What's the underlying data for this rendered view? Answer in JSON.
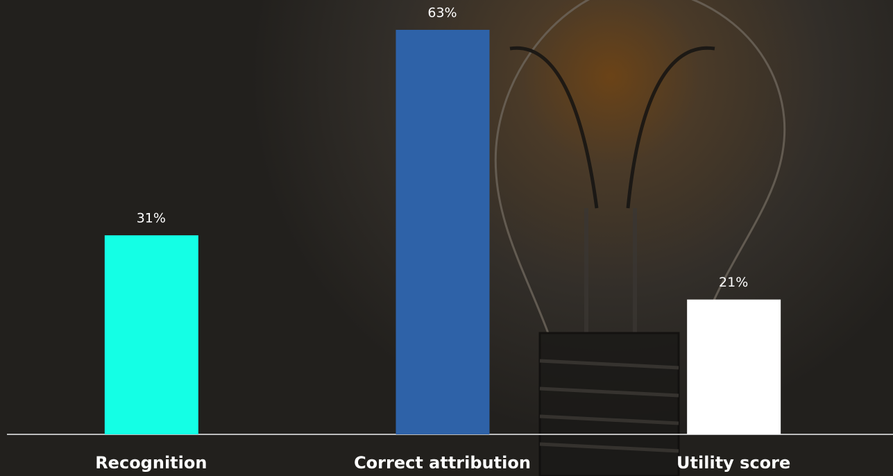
{
  "chart_data": {
    "type": "bar",
    "categories": [
      "Recognition",
      "Correct attribution",
      "Utility score"
    ],
    "values": [
      31,
      63,
      21
    ],
    "value_labels": [
      "31%",
      "63%",
      "21%"
    ],
    "colors": [
      "#14ffe5",
      "#2e62a8",
      "#ffffff"
    ],
    "ylim": [
      0,
      63
    ]
  }
}
